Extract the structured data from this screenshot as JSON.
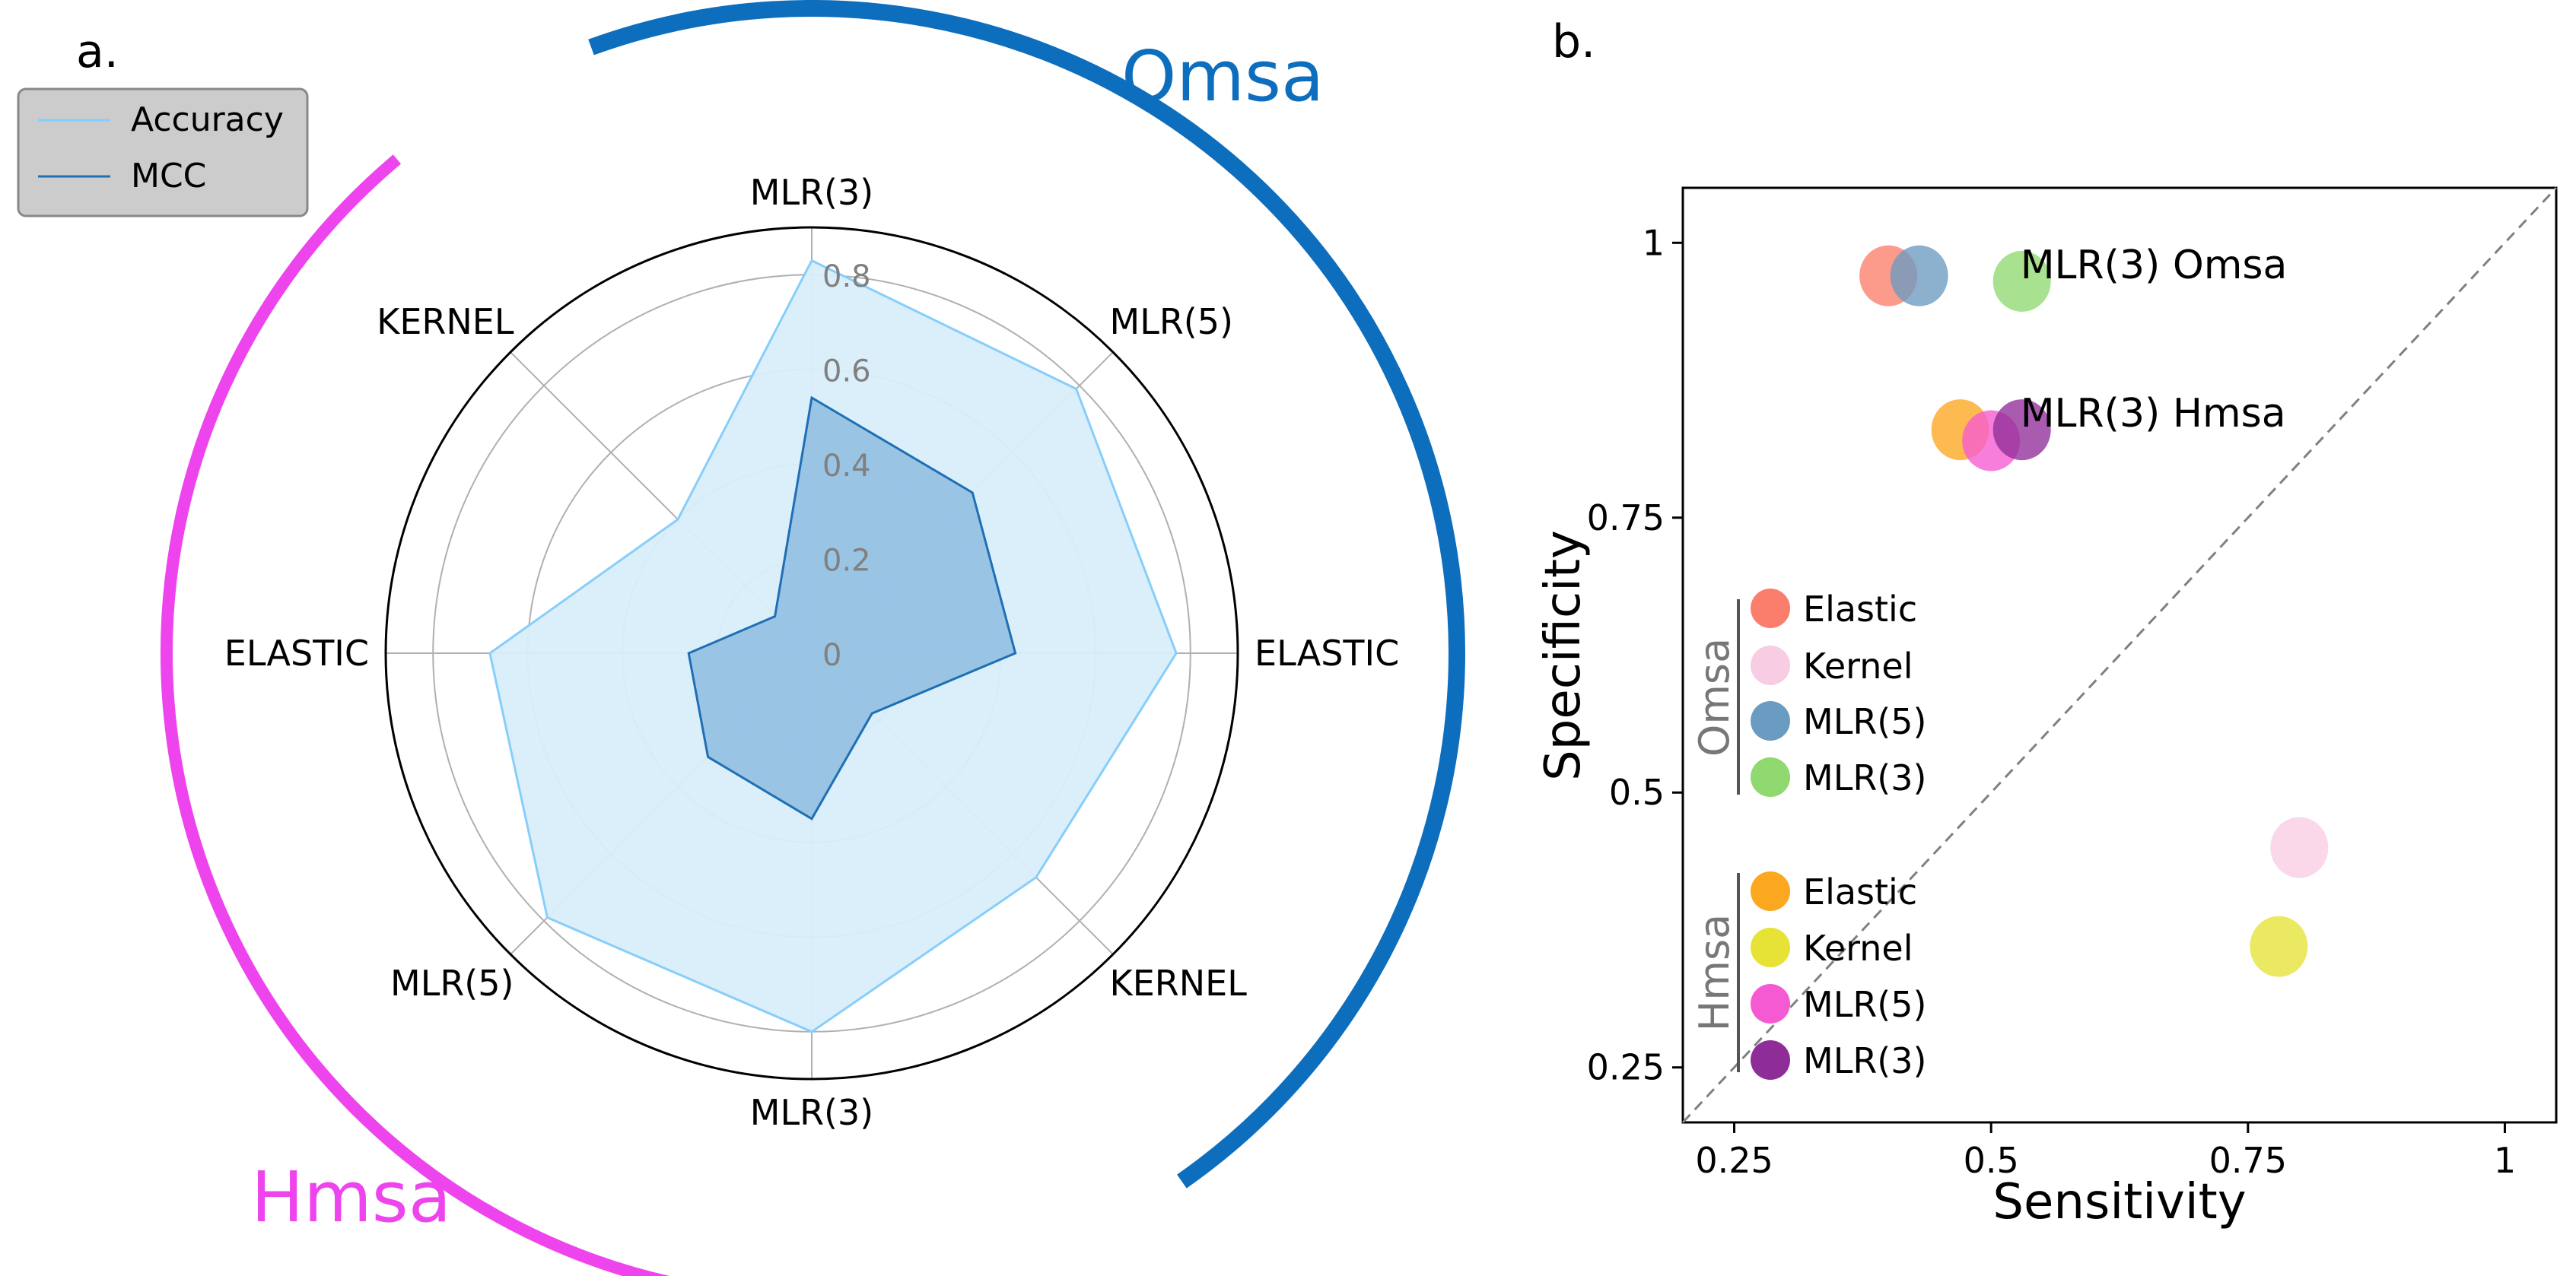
{
  "panel_a": {
    "label": "a.",
    "group_labels": {
      "omsa": "Omsa",
      "hmsa": "Hmsa"
    },
    "colors": {
      "omsa": "#0d6ebd",
      "hmsa": "#ee44ee",
      "accuracy_line": "#87cefa",
      "accuracy_fill": "#d9eefb",
      "mcc_line": "#1f6fb4",
      "mcc_fill": "#96c1e3"
    },
    "legend": [
      "Accuracy",
      "MCC"
    ]
  },
  "panel_b": {
    "label": "b.",
    "group_titles": [
      "Omsa",
      "Hmsa"
    ],
    "legend_omsa": [
      "Elastic",
      "Kernel",
      "MLR(5)",
      "MLR(3)"
    ],
    "legend_hmsa": [
      "Elastic",
      "Kernel",
      "MLR(5)",
      "MLR(3)"
    ],
    "legend_colors": {
      "omsa": [
        "#fb7e6c",
        "#f8cce3",
        "#6a9bc1",
        "#90d870"
      ],
      "hmsa": [
        "#fba71f",
        "#e6e336",
        "#f65ad2",
        "#8f2d98"
      ]
    }
  },
  "chart_data": [
    {
      "type": "radar",
      "categories": [
        "MLR(3)",
        "MLR(5)",
        "ELASTIC",
        "KERNEL",
        "MLR(3)",
        "MLR(5)",
        "ELASTIC",
        "KERNEL"
      ],
      "groups": [
        {
          "name": "Omsa",
          "categories": [
            "MLR(3)",
            "MLR(5)",
            "ELASTIC",
            "KERNEL"
          ]
        },
        {
          "name": "Hmsa",
          "categories": [
            "MLR(3)",
            "MLR(5)",
            "ELASTIC",
            "KERNEL"
          ]
        }
      ],
      "series": [
        {
          "name": "Accuracy",
          "values": [
            0.83,
            0.79,
            0.77,
            0.67,
            0.8,
            0.79,
            0.68,
            0.4
          ]
        },
        {
          "name": "MCC",
          "values": [
            0.54,
            0.48,
            0.43,
            0.18,
            0.35,
            0.31,
            0.26,
            0.11
          ]
        }
      ],
      "radial_ticks": [
        "0",
        "0.2",
        "0.4",
        "0.6",
        "0.8"
      ],
      "rlim": [
        0,
        0.9
      ],
      "legend_position": "top-left"
    },
    {
      "type": "scatter",
      "xlabel": "Sensitivity",
      "ylabel": "Specificity",
      "xlim": [
        0.2,
        1.05
      ],
      "ylim": [
        0.2,
        1.05
      ],
      "x_ticks": [
        "0.25",
        "0.5",
        "0.75",
        "1"
      ],
      "y_ticks": [
        "0.25",
        "0.5",
        "0.75",
        "1"
      ],
      "reference_line": "diagonal y = x (dashed)",
      "series": [
        {
          "name": "Omsa Elastic",
          "x": 0.4,
          "y": 0.97
        },
        {
          "name": "Omsa Kernel",
          "x": 0.8,
          "y": 0.45
        },
        {
          "name": "Omsa MLR(5)",
          "x": 0.43,
          "y": 0.97
        },
        {
          "name": "Omsa MLR(3)",
          "x": 0.53,
          "y": 0.965
        },
        {
          "name": "Hmsa Elastic",
          "x": 0.47,
          "y": 0.83
        },
        {
          "name": "Hmsa Kernel",
          "x": 0.78,
          "y": 0.36
        },
        {
          "name": "Hmsa MLR(5)",
          "x": 0.5,
          "y": 0.82
        },
        {
          "name": "Hmsa MLR(3)",
          "x": 0.53,
          "y": 0.83
        }
      ],
      "annotations": [
        {
          "text": "MLR(3) Omsa",
          "x": 0.53,
          "y": 0.965
        },
        {
          "text": "MLR(3) Hmsa",
          "x": 0.53,
          "y": 0.83
        }
      ]
    }
  ]
}
